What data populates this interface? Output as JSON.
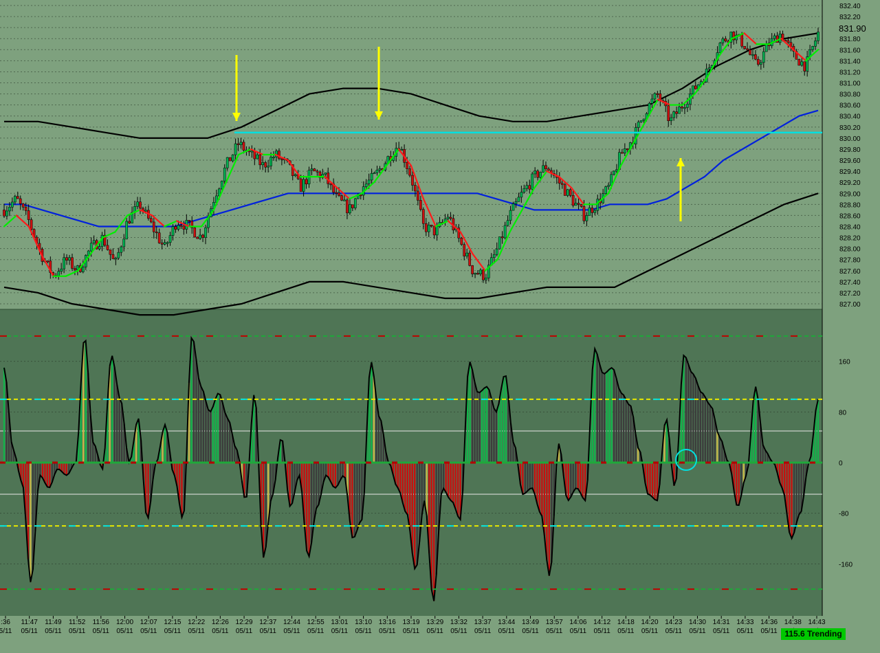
{
  "colors": {
    "background": "#7ea17e",
    "indicator_background": "#4f7555",
    "grid": "#2a3a2a",
    "up_candle": "#00b050",
    "down_candle": "#cc1010",
    "ma_fast_up": "#00ee00",
    "ma_fast_down": "#ff1a1a",
    "ma_slow": "#0020dd",
    "bands": "#000000",
    "level_line": "#00e0e0",
    "arrows": "#ffff00",
    "histogram_positive": "#13b24a",
    "histogram_negative": "#c80f0f",
    "histogram_neutral": "#3c3c3c",
    "histogram_transition": "#c8b84a",
    "status_badge": "#00c800"
  },
  "status_badge": "115.6 Trending",
  "chart_data": [
    {
      "type": "candlestick",
      "title": "",
      "ylim": [
        827.0,
        832.4
      ],
      "ytick_labels": [
        "832.40",
        "832.20",
        "832.00",
        "831.80",
        "831.60",
        "831.40",
        "831.20",
        "831.00",
        "830.80",
        "830.60",
        "830.40",
        "830.20",
        "830.00",
        "829.80",
        "829.60",
        "829.40",
        "829.20",
        "829.00",
        "828.80",
        "828.60",
        "828.40",
        "828.20",
        "828.00",
        "827.80",
        "827.60",
        "827.40",
        "827.20",
        "827.00"
      ],
      "last_price_label": "831.90",
      "x_tick_times": [
        ":36",
        "11:47",
        "11:49",
        "11:52",
        "11:56",
        "12:00",
        "12:07",
        "12:15",
        "12:22",
        "12:26",
        "12:29",
        "12:37",
        "12:44",
        "12:55",
        "13:01",
        "13:10",
        "13:16",
        "13:19",
        "13:29",
        "13:32",
        "13:37",
        "13:44",
        "13:49",
        "13:57",
        "14:06",
        "14:12",
        "14:18",
        "14:20",
        "14:23",
        "14:30",
        "14:31",
        "14:33",
        "14:36",
        "14:38",
        "14:43"
      ],
      "x_tick_dates": [
        "5/11",
        "05/11",
        "05/11",
        "05/11",
        "05/11",
        "05/11",
        "05/11",
        "05/11",
        "05/11",
        "05/11",
        "05/11",
        "05/11",
        "05/11",
        "05/11",
        "05/11",
        "05/11",
        "05/11",
        "05/11",
        "05/11",
        "05/11",
        "05/11",
        "05/11",
        "05/11",
        "05/11",
        "05/11",
        "05/11",
        "05/11",
        "05/11",
        "05/11",
        "05/11",
        "05/11",
        "05/11",
        "05/11",
        "05/11",
        "05/11"
      ],
      "price_path": [
        828.7,
        828.9,
        828.5,
        827.9,
        827.5,
        827.8,
        827.6,
        828.0,
        828.2,
        827.7,
        828.5,
        828.8,
        828.4,
        828.0,
        828.5,
        828.4,
        828.2,
        828.9,
        829.5,
        829.9,
        829.7,
        829.5,
        829.7,
        829.5,
        829.1,
        829.4,
        829.3,
        828.9,
        828.7,
        829.1,
        829.3,
        829.6,
        829.9,
        829.3,
        828.4,
        828.3,
        828.6,
        828.1,
        827.6,
        827.5,
        828.0,
        828.6,
        829.0,
        829.3,
        829.5,
        829.2,
        828.9,
        828.6,
        828.8,
        829.1,
        829.7,
        830.0,
        830.5,
        830.8,
        830.3,
        830.6,
        830.9,
        831.2,
        831.7,
        831.9,
        831.7,
        831.3,
        831.7,
        831.9,
        831.5,
        831.3,
        831.9
      ],
      "ma_fast": [
        828.4,
        828.6,
        828.4,
        827.9,
        827.5,
        827.5,
        827.6,
        827.9,
        828.2,
        828.3,
        828.6,
        828.7,
        828.6,
        828.4,
        828.5,
        828.4,
        828.4,
        828.7,
        829.2,
        829.7,
        829.8,
        829.7,
        829.7,
        829.6,
        829.3,
        829.3,
        829.3,
        829.1,
        828.9,
        829.0,
        829.2,
        829.5,
        829.8,
        829.5,
        828.9,
        828.4,
        828.5,
        828.3,
        827.9,
        827.6,
        827.8,
        828.3,
        828.7,
        829.1,
        829.4,
        829.3,
        829.1,
        828.8,
        828.8,
        829.0,
        829.5,
        829.9,
        830.3,
        830.7,
        830.6,
        830.6,
        830.8,
        831.1,
        831.5,
        831.8,
        831.9,
        831.7,
        831.7,
        831.8,
        831.6,
        831.4,
        831.6
      ],
      "ma_slow": [
        828.8,
        828.8,
        828.7,
        828.6,
        828.5,
        828.4,
        828.4,
        828.4,
        828.4,
        828.4,
        828.5,
        828.6,
        828.7,
        828.8,
        828.9,
        829.0,
        829.0,
        829.0,
        829.0,
        829.0,
        829.0,
        829.0,
        829.0,
        829.0,
        829.0,
        829.0,
        828.9,
        828.8,
        828.7,
        828.7,
        828.7,
        828.7,
        828.8,
        828.8,
        828.8,
        828.9,
        829.1,
        829.3,
        829.6,
        829.8,
        830.0,
        830.2,
        830.4,
        830.5
      ],
      "band_upper": [
        830.3,
        830.3,
        830.2,
        830.1,
        830.0,
        830.0,
        830.0,
        830.2,
        830.5,
        830.8,
        830.9,
        830.9,
        830.8,
        830.6,
        830.4,
        830.3,
        830.3,
        830.4,
        830.5,
        830.6,
        830.9,
        831.3,
        831.6,
        831.8,
        831.9
      ],
      "band_lower": [
        827.3,
        827.2,
        827.0,
        826.9,
        826.8,
        826.8,
        826.9,
        827.0,
        827.2,
        827.4,
        827.4,
        827.3,
        827.2,
        827.1,
        827.1,
        827.2,
        827.3,
        827.3,
        827.3,
        827.6,
        827.9,
        828.2,
        828.5,
        828.8,
        829.0
      ],
      "level_line": 830.1,
      "annotations": [
        "arrow-down at 12:29",
        "arrow-down at 13:16",
        "arrow-up at 14:23"
      ]
    },
    {
      "type": "area",
      "title": "",
      "ylim": [
        -240,
        240
      ],
      "ytick_labels": [
        "160",
        "80",
        "0",
        "-80",
        "-160"
      ],
      "levels": [
        200,
        100,
        -100,
        -200
      ],
      "values": [
        150,
        20,
        -30,
        -190,
        -20,
        -40,
        -10,
        -20,
        0,
        200,
        30,
        -10,
        170,
        100,
        0,
        70,
        -90,
        0,
        60,
        -20,
        -90,
        200,
        120,
        80,
        110,
        70,
        20,
        -60,
        110,
        -150,
        -50,
        40,
        -70,
        -20,
        -150,
        -70,
        -20,
        -40,
        -20,
        -120,
        -90,
        160,
        70,
        0,
        -40,
        -80,
        -170,
        -60,
        -220,
        -40,
        -60,
        -90,
        160,
        110,
        120,
        80,
        140,
        30,
        -50,
        -40,
        -80,
        -180,
        30,
        -60,
        -40,
        -60,
        180,
        140,
        150,
        110,
        90,
        20,
        -50,
        -60,
        70,
        -40,
        170,
        140,
        110,
        90,
        40,
        0,
        -70,
        -20,
        120,
        20,
        0,
        -40,
        -120,
        -80,
        0,
        100
      ]
    }
  ]
}
